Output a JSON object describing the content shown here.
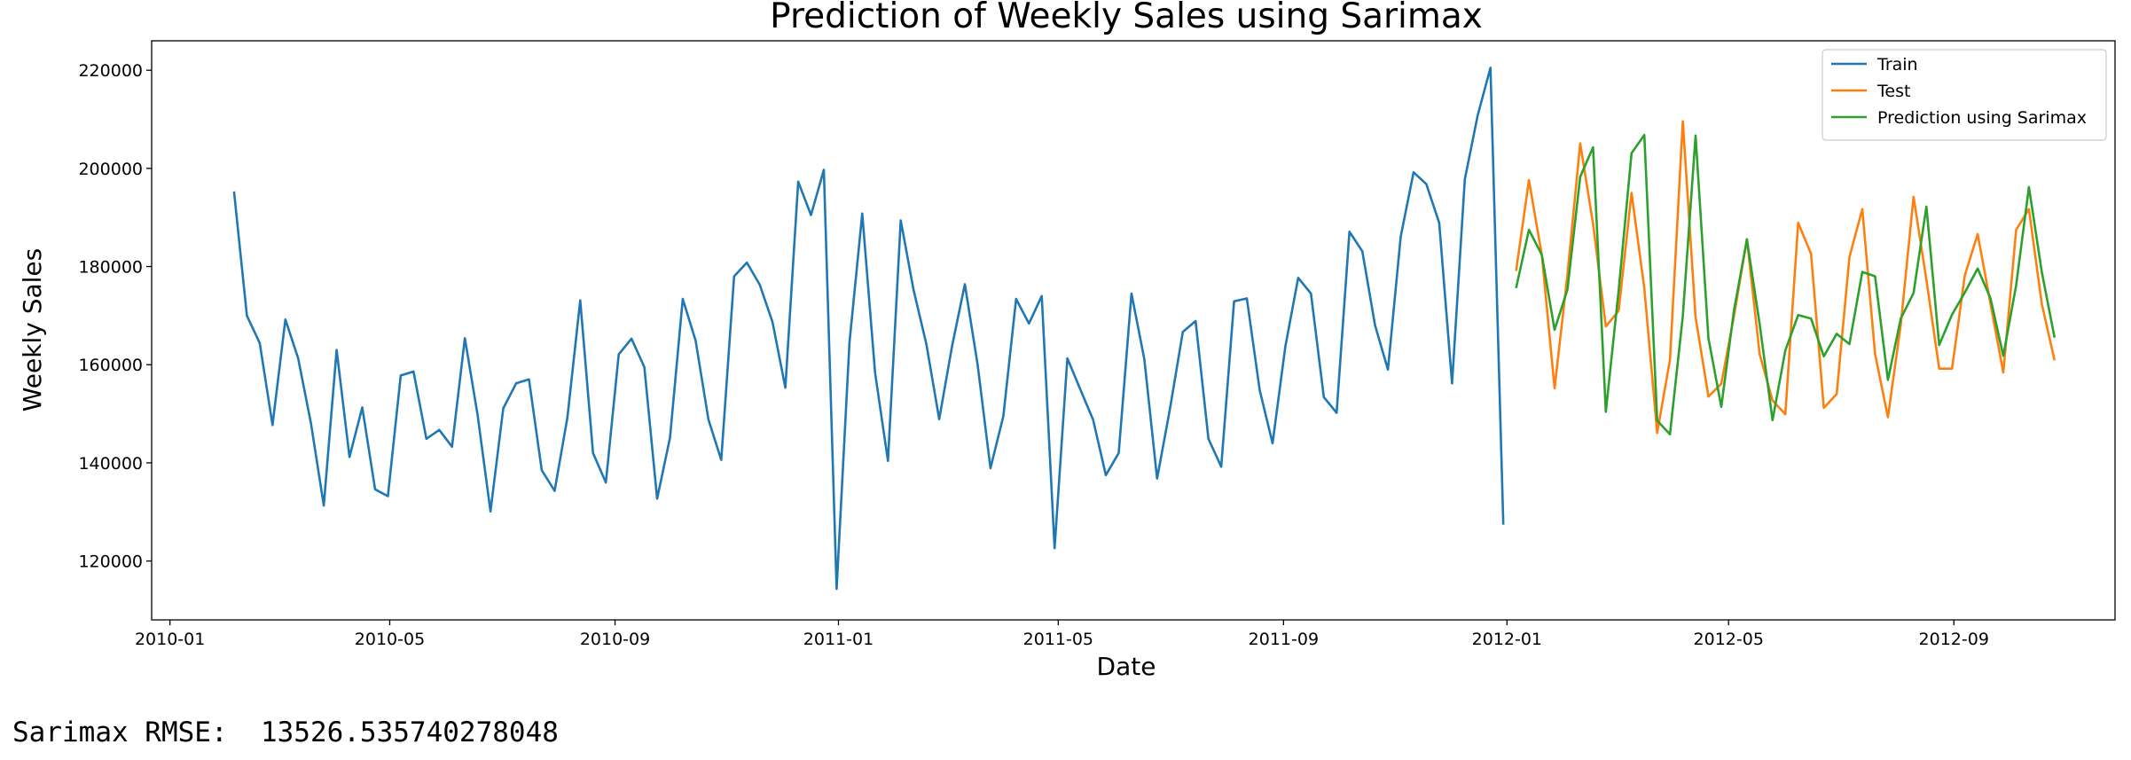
{
  "chart_data": {
    "type": "line",
    "title": "Prediction of Weekly Sales using Sarimax",
    "xlabel": "Date",
    "ylabel": "Weekly Sales",
    "xlim": [
      "2009-12-22",
      "2012-11-28"
    ],
    "ylim": [
      108000,
      226000
    ],
    "x_ticks": [
      "2010-01",
      "2010-05",
      "2010-09",
      "2011-01",
      "2011-05",
      "2011-09",
      "2012-01",
      "2012-05",
      "2012-09"
    ],
    "y_ticks": [
      120000,
      140000,
      160000,
      180000,
      200000,
      220000
    ],
    "grid": false,
    "legend_position": "top-right",
    "series": [
      {
        "name": "Train",
        "color": "#1f77b4",
        "start": "2010-02-05",
        "step_days": 7,
        "values": [
          195300,
          170000,
          164400,
          147700,
          169200,
          161300,
          148000,
          131300,
          163000,
          141200,
          151300,
          134600,
          133200,
          157800,
          158600,
          144900,
          146700,
          143300,
          165400,
          149700,
          130100,
          151100,
          156200,
          157000,
          138500,
          134300,
          149200,
          173100,
          142000,
          136000,
          162100,
          165300,
          159500,
          132700,
          145100,
          173400,
          164900,
          148800,
          140600,
          178000,
          180800,
          176300,
          168700,
          155300,
          197300,
          190500,
          199700,
          114300,
          164500,
          190800,
          158300,
          140400,
          189400,
          175200,
          164200,
          148900,
          163700,
          176400,
          160000,
          138900,
          149500,
          173400,
          168400,
          174000,
          122600,
          161300,
          155000,
          148800,
          137500,
          142000,
          174500,
          161100,
          136800,
          151000,
          166700,
          168900,
          144900,
          139200,
          172900,
          173500,
          154800,
          144000,
          163700,
          177700,
          174500,
          153400,
          150200,
          187100,
          183100,
          168000,
          159000,
          186100,
          199200,
          196800,
          188900,
          156200,
          197800,
          210800,
          220500,
          127400
        ]
      },
      {
        "name": "Test",
        "color": "#ff7f0e",
        "start": "2012-01-06",
        "step_days": 7,
        "values": [
          179100,
          197600,
          182400,
          155200,
          178300,
          205100,
          188700,
          167800,
          171000,
          195000,
          175600,
          146100,
          161000,
          209600,
          169700,
          153500,
          156100,
          170000,
          185600,
          162100,
          152700,
          149900,
          188900,
          182600,
          151200,
          154000,
          181900,
          191700,
          162200,
          149300,
          168200,
          194200,
          177300,
          159200,
          159200,
          178200,
          186600,
          172400,
          158400,
          187500,
          191700,
          172400,
          160900
        ]
      },
      {
        "name": "Prediction using Sarimax",
        "color": "#2ca02c",
        "start": "2012-01-06",
        "step_days": 7,
        "values": [
          175600,
          187500,
          182400,
          167100,
          175300,
          198300,
          204300,
          150400,
          175200,
          203100,
          206800,
          148600,
          145800,
          169900,
          206700,
          165400,
          151400,
          171200,
          185500,
          168200,
          148700,
          162900,
          170100,
          169400,
          161700,
          166300,
          164200,
          178900,
          178000,
          156900,
          169400,
          174600,
          192200,
          164000,
          170200,
          174700,
          179600,
          173500,
          161800,
          176200,
          196200,
          178900,
          165500
        ]
      }
    ]
  },
  "footer": {
    "rmse_text": "Sarimax RMSE:  13526.535740278048"
  }
}
